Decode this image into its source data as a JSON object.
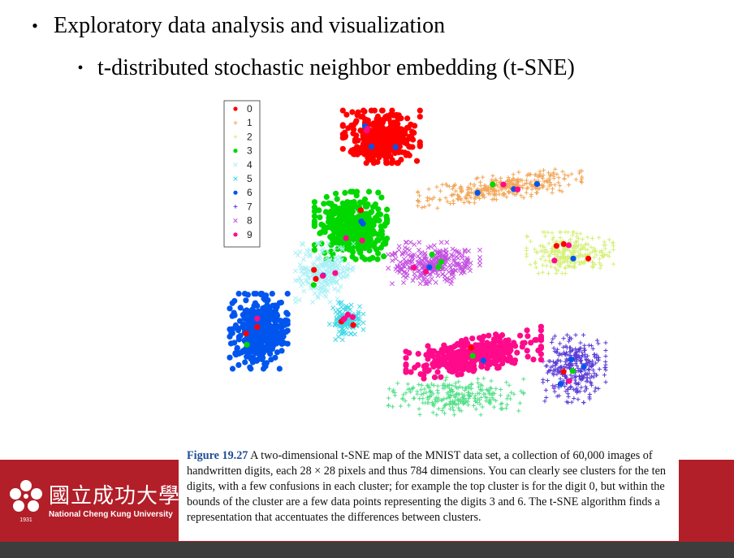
{
  "bullets": [
    {
      "text": "Exploratory data analysis and visualization"
    },
    {
      "text": "t-distributed stochastic neighbor embedding (t-SNE)"
    }
  ],
  "bullet_glyph": "•",
  "chart_data": {
    "type": "scatter",
    "title": "",
    "xlabel": "",
    "ylabel": "",
    "legend": {
      "placement": "top-left",
      "entries": [
        "0",
        "1",
        "2",
        "3",
        "4",
        "5",
        "6",
        "7",
        "8",
        "9"
      ]
    },
    "series": [
      {
        "name": "0",
        "marker": "dot",
        "color": "#ff0000",
        "center": [
          0.37,
          0.12
        ],
        "spread": [
          0.08,
          0.07
        ],
        "count": 380
      },
      {
        "name": "1",
        "marker": "plus",
        "color": "#f2a657",
        "center": [
          0.64,
          0.27
        ],
        "spread": [
          0.17,
          0.035
        ],
        "count": 320,
        "tilt": -0.18
      },
      {
        "name": "2",
        "marker": "plus",
        "color": "#d6f07a",
        "center": [
          0.8,
          0.46
        ],
        "spread": [
          0.09,
          0.055
        ],
        "count": 260
      },
      {
        "name": "3",
        "marker": "dot",
        "color": "#00d800",
        "center": [
          0.3,
          0.38
        ],
        "spread": [
          0.075,
          0.09
        ],
        "count": 380
      },
      {
        "name": "4",
        "marker": "x",
        "color": "#a8f0f5",
        "center": [
          0.24,
          0.52
        ],
        "spread": [
          0.06,
          0.08
        ],
        "count": 220
      },
      {
        "name": "5",
        "marker": "x",
        "color": "#3fd8e6",
        "center": [
          0.29,
          0.66
        ],
        "spread": [
          0.035,
          0.05
        ],
        "count": 120
      },
      {
        "name": "6",
        "marker": "dot",
        "color": "#0055ee",
        "center": [
          0.09,
          0.69
        ],
        "spread": [
          0.06,
          0.1
        ],
        "count": 360
      },
      {
        "name": "7",
        "marker": "plus",
        "color": "#5a3bd6",
        "center": [
          0.81,
          0.8
        ],
        "spread": [
          0.065,
          0.09
        ],
        "count": 300
      },
      {
        "name": "8",
        "marker": "x",
        "color": "#c24fe0",
        "center": [
          0.49,
          0.49
        ],
        "spread": [
          0.095,
          0.055
        ],
        "count": 280
      },
      {
        "name": "9",
        "marker": "dot",
        "color": "#ff0a8a",
        "center": [
          0.58,
          0.76
        ],
        "spread": [
          0.14,
          0.045
        ],
        "count": 380,
        "tilt": -0.22
      }
    ],
    "extra_clusters": [
      {
        "marker": "plus",
        "color": "#55e08a",
        "center": [
          0.54,
          0.88
        ],
        "spread": [
          0.14,
          0.05
        ],
        "count": 260
      }
    ]
  },
  "caption": {
    "figure_label": "Figure 19.27",
    "text": "A two-dimensional t-SNE map of the MNIST data set, a collection of 60,000 images of handwritten digits, each 28 × 28 pixels and thus 784 dimensions. You can clearly see clusters for the ten digits, with a few confusions in each cluster; for example the top cluster is for the digit 0, but within the bounds of the cluster are a few data points representing the digits 3 and 6. The t-SNE algorithm finds a representation that accentuates the differences between clusters."
  },
  "logo": {
    "chinese_name": "國立成功大學",
    "english_name": "National Cheng Kung University",
    "year": "1931"
  },
  "colors": {
    "band": "#b21f29",
    "caption_label": "#1f4e96",
    "bottom_bar": "#3d3d3d"
  }
}
